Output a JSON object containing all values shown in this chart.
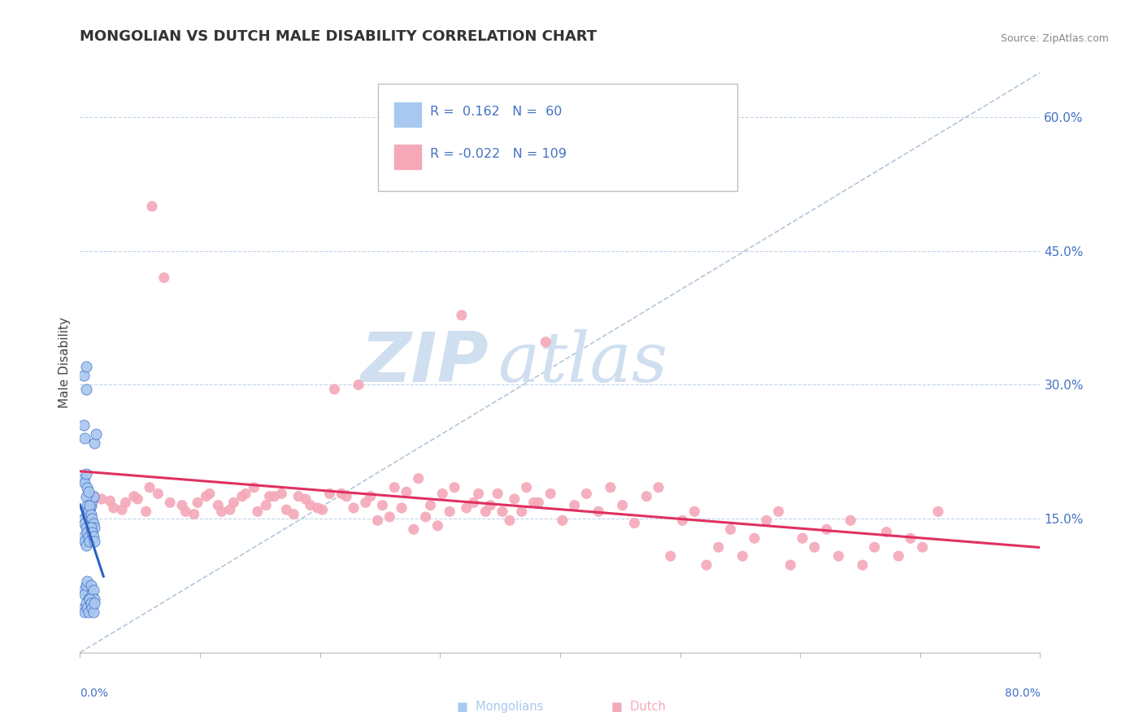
{
  "title": "MONGOLIAN VS DUTCH MALE DISABILITY CORRELATION CHART",
  "source": "Source: ZipAtlas.com",
  "ylabel": "Male Disability",
  "xlim": [
    0.0,
    0.8
  ],
  "ylim": [
    0.0,
    0.65
  ],
  "mongolian_R": 0.162,
  "mongolian_N": 60,
  "dutch_R": -0.022,
  "dutch_N": 109,
  "mongolian_color": "#a8c8f0",
  "dutch_color": "#f4a8b8",
  "mongolian_trend_color": "#3060c0",
  "dutch_trend_color": "#e03060",
  "grid_color": "#c0d4e8",
  "diag_line_color": "#a0b8d0",
  "watermark_color": "#d0dff0",
  "background_color": "#ffffff",
  "legend_edge_color": "#c0c0c0",
  "label_color": "#4472c4",
  "mongolian_x": [
    0.003,
    0.005,
    0.005,
    0.007,
    0.008,
    0.009,
    0.01,
    0.011,
    0.012,
    0.013,
    0.003,
    0.004,
    0.005,
    0.006,
    0.007,
    0.003,
    0.004,
    0.005,
    0.006,
    0.007,
    0.003,
    0.004,
    0.005,
    0.006,
    0.007,
    0.008,
    0.009,
    0.01,
    0.011,
    0.012,
    0.003,
    0.004,
    0.005,
    0.006,
    0.007,
    0.008,
    0.009,
    0.01,
    0.011,
    0.012,
    0.003,
    0.004,
    0.005,
    0.006,
    0.007,
    0.008,
    0.009,
    0.01,
    0.011,
    0.012,
    0.003,
    0.004,
    0.005,
    0.006,
    0.007,
    0.008,
    0.009,
    0.01,
    0.011,
    0.012
  ],
  "mongolian_y": [
    0.31,
    0.32,
    0.295,
    0.155,
    0.16,
    0.165,
    0.17,
    0.175,
    0.235,
    0.245,
    0.255,
    0.24,
    0.175,
    0.165,
    0.155,
    0.195,
    0.19,
    0.2,
    0.185,
    0.18,
    0.15,
    0.145,
    0.14,
    0.155,
    0.16,
    0.165,
    0.155,
    0.15,
    0.145,
    0.14,
    0.13,
    0.125,
    0.12,
    0.135,
    0.13,
    0.125,
    0.14,
    0.135,
    0.13,
    0.125,
    0.07,
    0.065,
    0.075,
    0.08,
    0.06,
    0.055,
    0.075,
    0.065,
    0.07,
    0.06,
    0.05,
    0.045,
    0.055,
    0.05,
    0.045,
    0.06,
    0.055,
    0.05,
    0.045,
    0.055
  ],
  "dutch_x": [
    0.012,
    0.025,
    0.035,
    0.045,
    0.058,
    0.06,
    0.07,
    0.085,
    0.095,
    0.105,
    0.115,
    0.125,
    0.135,
    0.145,
    0.158,
    0.162,
    0.172,
    0.182,
    0.192,
    0.202,
    0.212,
    0.222,
    0.232,
    0.242,
    0.252,
    0.262,
    0.272,
    0.282,
    0.292,
    0.302,
    0.312,
    0.322,
    0.332,
    0.342,
    0.352,
    0.362,
    0.372,
    0.382,
    0.392,
    0.402,
    0.412,
    0.422,
    0.432,
    0.442,
    0.452,
    0.462,
    0.472,
    0.482,
    0.492,
    0.502,
    0.512,
    0.522,
    0.532,
    0.542,
    0.552,
    0.562,
    0.572,
    0.582,
    0.592,
    0.602,
    0.612,
    0.622,
    0.632,
    0.642,
    0.652,
    0.662,
    0.672,
    0.682,
    0.692,
    0.702,
    0.018,
    0.028,
    0.038,
    0.048,
    0.055,
    0.065,
    0.075,
    0.088,
    0.098,
    0.108,
    0.118,
    0.128,
    0.138,
    0.148,
    0.155,
    0.168,
    0.178,
    0.188,
    0.198,
    0.208,
    0.218,
    0.228,
    0.238,
    0.248,
    0.258,
    0.268,
    0.278,
    0.288,
    0.298,
    0.308,
    0.318,
    0.328,
    0.338,
    0.348,
    0.358,
    0.368,
    0.378,
    0.388,
    0.715
  ],
  "dutch_y": [
    0.175,
    0.17,
    0.16,
    0.175,
    0.185,
    0.5,
    0.42,
    0.165,
    0.155,
    0.175,
    0.165,
    0.16,
    0.175,
    0.185,
    0.175,
    0.175,
    0.16,
    0.175,
    0.165,
    0.16,
    0.295,
    0.175,
    0.3,
    0.175,
    0.165,
    0.185,
    0.18,
    0.195,
    0.165,
    0.178,
    0.185,
    0.162,
    0.178,
    0.165,
    0.158,
    0.172,
    0.185,
    0.168,
    0.178,
    0.148,
    0.165,
    0.178,
    0.158,
    0.185,
    0.165,
    0.145,
    0.175,
    0.185,
    0.108,
    0.148,
    0.158,
    0.098,
    0.118,
    0.138,
    0.108,
    0.128,
    0.148,
    0.158,
    0.098,
    0.128,
    0.118,
    0.138,
    0.108,
    0.148,
    0.098,
    0.118,
    0.135,
    0.108,
    0.128,
    0.118,
    0.172,
    0.162,
    0.168,
    0.172,
    0.158,
    0.178,
    0.168,
    0.158,
    0.168,
    0.178,
    0.158,
    0.168,
    0.178,
    0.158,
    0.165,
    0.178,
    0.155,
    0.172,
    0.162,
    0.178,
    0.178,
    0.162,
    0.168,
    0.148,
    0.152,
    0.162,
    0.138,
    0.152,
    0.142,
    0.158,
    0.378,
    0.168,
    0.158,
    0.178,
    0.148,
    0.158,
    0.168,
    0.348,
    0.158
  ]
}
